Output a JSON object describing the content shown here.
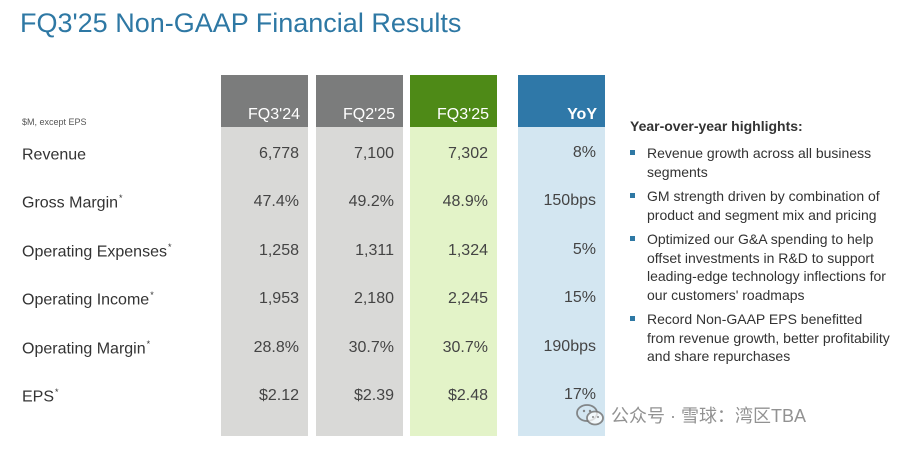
{
  "title": "FQ3'25 Non-GAAP Financial Results",
  "units_note": "$M, except EPS",
  "columns": [
    {
      "label": "FQ3'24",
      "color": "#7b7c7c",
      "body_color": "#d9d9d7"
    },
    {
      "label": "FQ2'25",
      "color": "#7b7c7c",
      "body_color": "#d9d9d7"
    },
    {
      "label": "FQ3'25",
      "color": "#4e8a17",
      "body_color": "#e3f3c8"
    },
    {
      "label": "YoY",
      "color": "#2f78a8",
      "body_color": "#d3e6f1"
    }
  ],
  "rows": [
    {
      "label": "Revenue",
      "mark": "",
      "values": [
        "6,778",
        "7,100",
        "7,302",
        "8%"
      ]
    },
    {
      "label": "Gross Margin",
      "mark": "*",
      "values": [
        "47.4%",
        "49.2%",
        "48.9%",
        "150bps"
      ]
    },
    {
      "label": "Operating Expenses",
      "mark": "*",
      "values": [
        "1,258",
        "1,311",
        "1,324",
        "5%"
      ]
    },
    {
      "label": "Operating Income",
      "mark": "*",
      "values": [
        "1,953",
        "2,180",
        "2,245",
        "15%"
      ]
    },
    {
      "label": "Operating Margin",
      "mark": "*",
      "values": [
        "28.8%",
        "30.7%",
        "30.7%",
        "190bps"
      ]
    },
    {
      "label": "EPS",
      "mark": "*",
      "values": [
        "$2.12",
        "$2.39",
        "$2.48",
        "17%"
      ]
    }
  ],
  "highlights": {
    "title": "Year-over-year highlights:",
    "items": [
      "Revenue growth across all business segments",
      "GM strength driven by combination of product and segment mix and pricing",
      "Optimized our G&A spending to help offset investments in R&D to support leading-edge technology inflections for our customers' roadmaps",
      "Record Non-GAAP EPS benefitted from revenue growth, better profitability and share repurchases"
    ]
  },
  "watermark": {
    "text": "公众号 · 雪球：湾区TBA",
    "icon": "wechat-icon"
  }
}
